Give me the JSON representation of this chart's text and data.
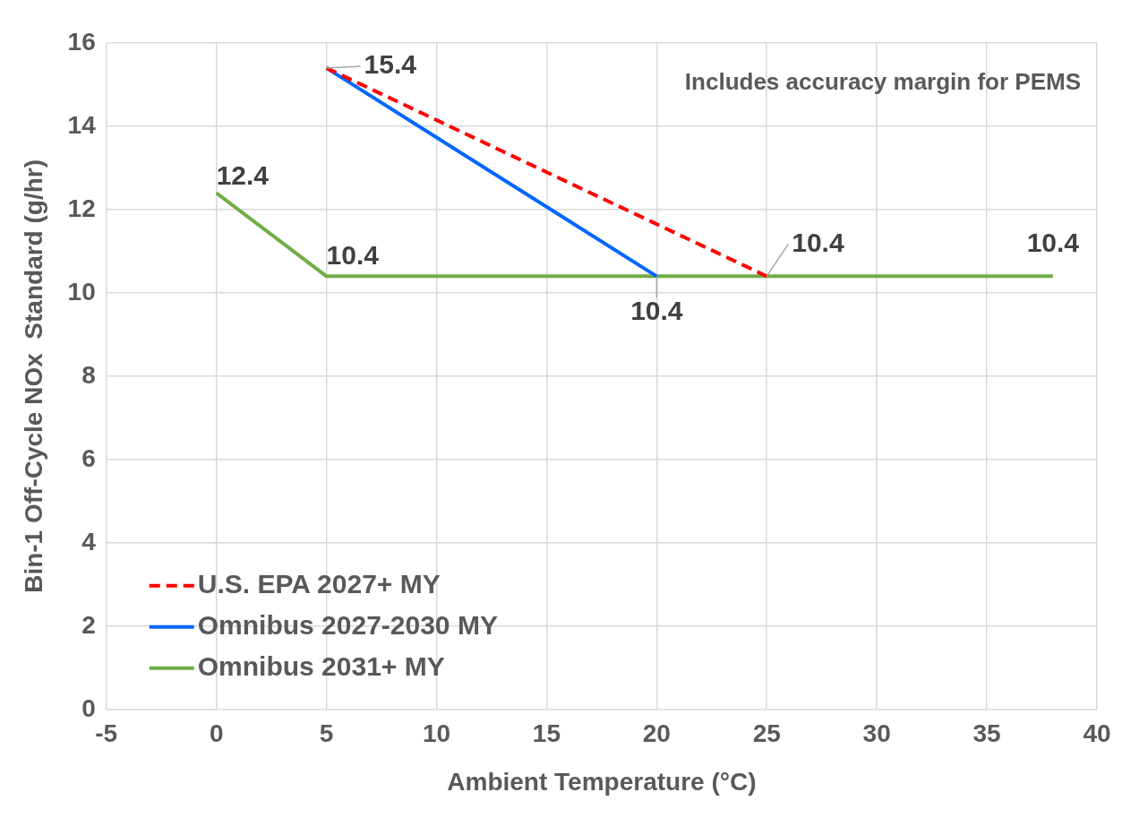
{
  "chart_data": {
    "type": "line",
    "xlabel": "Ambient Temperature (°C)",
    "ylabel": "Bin-1 Off-Cycle NOx  Standard (g/hr)",
    "xlim": [
      -5,
      40
    ],
    "xticks": [
      -5,
      0,
      5,
      10,
      15,
      20,
      25,
      30,
      35,
      40
    ],
    "ylim": [
      0,
      16
    ],
    "yticks": [
      0,
      2,
      4,
      6,
      8,
      10,
      12,
      14,
      16
    ],
    "grid": true,
    "legend": "bottom left",
    "marker": "none",
    "series": [
      {
        "name": "U.S. EPA 2027+ MY",
        "color": "#ff0000",
        "line_style": "dashed",
        "x": [
          5,
          25
        ],
        "values": [
          15.4,
          10.4
        ]
      },
      {
        "name": "Omnibus 2027-2030 MY",
        "color": "#0066ff",
        "line_style": "solid",
        "x": [
          5,
          20
        ],
        "values": [
          15.4,
          10.4
        ]
      },
      {
        "name": "Omnibus 2031+ MY",
        "color": "#70ad47",
        "line_style": "solid",
        "x": [
          0,
          5,
          38
        ],
        "values": [
          12.4,
          10.4,
          10.4
        ]
      }
    ],
    "annotations": [
      "Includes accuracy margin for PEMS",
      {
        "text": "15.4",
        "x": 5,
        "y": 15.4
      },
      {
        "text": "12.4",
        "x": 0,
        "y": 12.4
      },
      {
        "text": "10.4",
        "x": 5,
        "y": 10.4
      },
      {
        "text": "10.4",
        "x": 20,
        "y": 10.4
      },
      {
        "text": "10.4",
        "x": 25,
        "y": 10.4
      },
      {
        "text": "10.4",
        "x": 38,
        "y": 10.4
      }
    ]
  }
}
